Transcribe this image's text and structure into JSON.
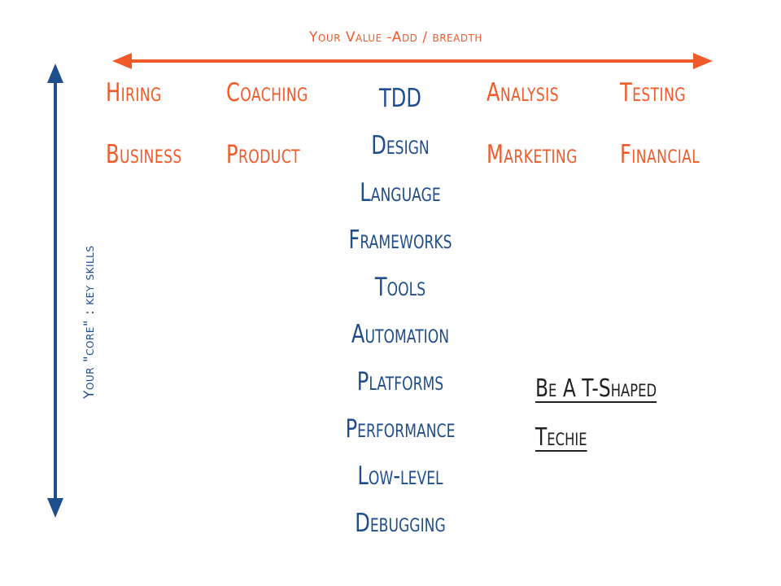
{
  "breadth_axis": {
    "label": "Your Value -Add / breadth",
    "color": "#f15a29"
  },
  "core_axis": {
    "label": "Your \"core\" : key skills",
    "color": "#1f4e8c"
  },
  "breadth_skills_row1": [
    "Hiring",
    "Coaching",
    "Analysis",
    "Testing"
  ],
  "breadth_skills_row2": [
    "Business",
    "Product",
    "Marketing",
    "Financial"
  ],
  "core_skills": [
    "TDD",
    "Design",
    "Language",
    "Frameworks",
    "Tools",
    "Automation",
    "Platforms",
    "Performance",
    "Low-level",
    "Debugging"
  ],
  "tagline": {
    "line1": "Be A T-Shaped",
    "line2": "Techie"
  }
}
